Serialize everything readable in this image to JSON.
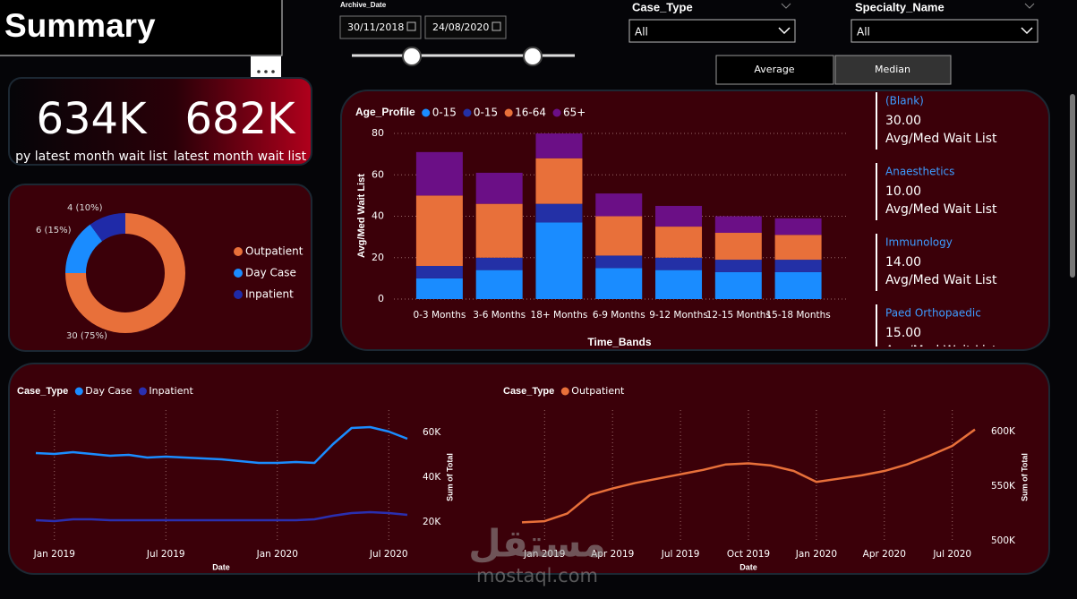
{
  "header": {
    "title": "Summary"
  },
  "filters": {
    "archive_date": {
      "label": "Archive_Date",
      "start": "30/11/2018",
      "end": "24/08/2020"
    },
    "case_type": {
      "label": "Case_Type",
      "value": "All"
    },
    "specialty_name": {
      "label": "Specialty_Name",
      "value": "All"
    }
  },
  "buttons": [
    "Average",
    "Median"
  ],
  "kpis": [
    {
      "value": "634K",
      "label": "py latest month wait list"
    },
    {
      "value": "682K",
      "label": "latest month wait list"
    }
  ],
  "specialties": [
    {
      "name": "(Blank)",
      "value": "30.00",
      "label": "Avg/Med Wait List"
    },
    {
      "name": "Anaesthetics",
      "value": "10.00",
      "label": "Avg/Med Wait List"
    },
    {
      "name": "Immunology",
      "value": "14.00",
      "label": "Avg/Med Wait List"
    },
    {
      "name": "Paed Orthopaedic",
      "value": "15.00",
      "label": "Avg/Med Wait List"
    }
  ],
  "watermark": {
    "arabic": "مستقل",
    "latin": "mostaql.com"
  },
  "chart_data": [
    {
      "type": "donut",
      "categories": [
        "Outpatient",
        "Day Case",
        "Inpatient"
      ],
      "values": [
        30,
        6,
        4
      ],
      "value_labels": [
        "30 (75%)",
        "6 (15%)",
        "4 (10%)"
      ],
      "colors": [
        "#e8703a",
        "#1a8cff",
        "#1f2aa8"
      ]
    },
    {
      "type": "bar",
      "stacked": true,
      "legend_title": "Age_Profile",
      "categories": [
        "0-3 Months",
        "3-6 Months",
        "18+ Months",
        "6-9 Months",
        "9-12 Months",
        "12-15 Months",
        "15-18 Months"
      ],
      "series": [
        {
          "name": "0-15",
          "color": "#1a8cff",
          "values": [
            10,
            14,
            37,
            15,
            14,
            13,
            13
          ]
        },
        {
          "name": "0-15",
          "color": "#2330a6",
          "values": [
            6,
            6,
            9,
            6,
            6,
            6,
            6
          ]
        },
        {
          "name": "16-64",
          "color": "#e8703a",
          "values": [
            34,
            26,
            22,
            19,
            15,
            13,
            12
          ]
        },
        {
          "name": "65+",
          "color": "#6b0f86",
          "values": [
            21,
            15,
            12,
            11,
            10,
            8,
            8
          ]
        }
      ],
      "xlabel": "Time_Bands",
      "ylabel": "Avg/Med Wait List",
      "ylim": [
        0,
        82
      ],
      "yticks": [
        0,
        20,
        40,
        60,
        80
      ],
      "grid": true
    },
    {
      "type": "line",
      "legend_title": "Case_Type",
      "x": [
        "2018-12",
        "2019-01",
        "2019-02",
        "2019-03",
        "2019-04",
        "2019-05",
        "2019-06",
        "2019-07",
        "2019-08",
        "2019-09",
        "2019-10",
        "2019-11",
        "2019-12",
        "2020-01",
        "2020-02",
        "2020-03",
        "2020-04",
        "2020-05",
        "2020-06",
        "2020-07",
        "2020-08"
      ],
      "series": [
        {
          "name": "Day Case",
          "color": "#1a8cff",
          "values": [
            50800,
            50400,
            51200,
            50400,
            49600,
            50000,
            48800,
            49200,
            48800,
            48400,
            48000,
            47200,
            46400,
            46400,
            46800,
            46400,
            54800,
            62000,
            62400,
            60400,
            57200
          ]
        },
        {
          "name": "Inpatient",
          "color": "#2a2fb0",
          "values": [
            20800,
            20400,
            21200,
            21200,
            20800,
            20800,
            20800,
            20800,
            20800,
            20800,
            20800,
            20800,
            20800,
            20800,
            20800,
            21200,
            22800,
            24000,
            24400,
            24000,
            23200
          ]
        }
      ],
      "xlabel": "Date",
      "ylabel": "Sum of Total",
      "xlim": [
        "2018-12",
        "2020-08"
      ],
      "xticks": [
        {
          "value": "2019-01",
          "label": "Jan 2019"
        },
        {
          "value": "2019-07",
          "label": "Jul 2019"
        },
        {
          "value": "2020-01",
          "label": "Jan 2020"
        },
        {
          "value": "2020-07",
          "label": "Jul 2020"
        }
      ],
      "ylim": [
        13000,
        71000
      ],
      "yticks": [
        {
          "value": 20000,
          "label": "20K"
        },
        {
          "value": 40000,
          "label": "40K"
        },
        {
          "value": 60000,
          "label": "60K"
        }
      ],
      "y_axis_side": "right",
      "grid": true
    },
    {
      "type": "line",
      "legend_title": "Case_Type",
      "x": [
        "2018-12",
        "2019-01",
        "2019-02",
        "2019-03",
        "2019-04",
        "2019-05",
        "2019-06",
        "2019-07",
        "2019-08",
        "2019-09",
        "2019-10",
        "2019-11",
        "2019-12",
        "2020-01",
        "2020-02",
        "2020-03",
        "2020-04",
        "2020-05",
        "2020-06",
        "2020-07",
        "2020-08"
      ],
      "series": [
        {
          "name": "Outpatient",
          "color": "#e8703a",
          "values": [
            517000,
            518000,
            525000,
            542000,
            548000,
            553000,
            557000,
            561000,
            565000,
            570000,
            571000,
            569000,
            564000,
            554000,
            557000,
            560000,
            564000,
            570000,
            578000,
            587000,
            602000
          ]
        }
      ],
      "xlabel": "Date",
      "ylabel": "Sum of Total",
      "xlim": [
        "2018-12",
        "2020-08"
      ],
      "xticks": [
        {
          "value": "2019-01",
          "label": "Jan 2019"
        },
        {
          "value": "2019-04",
          "label": "Apr 2019"
        },
        {
          "value": "2019-07",
          "label": "Jul 2019"
        },
        {
          "value": "2019-10",
          "label": "Oct 2019"
        },
        {
          "value": "2020-01",
          "label": "Jan 2020"
        },
        {
          "value": "2020-04",
          "label": "Apr 2020"
        },
        {
          "value": "2020-07",
          "label": "Jul 2020"
        }
      ],
      "ylim": [
        498000,
        622000
      ],
      "yticks": [
        {
          "value": 500000,
          "label": "500K"
        },
        {
          "value": 550000,
          "label": "550K"
        },
        {
          "value": 600000,
          "label": "600K"
        }
      ],
      "y_axis_side": "right",
      "grid": true
    }
  ]
}
